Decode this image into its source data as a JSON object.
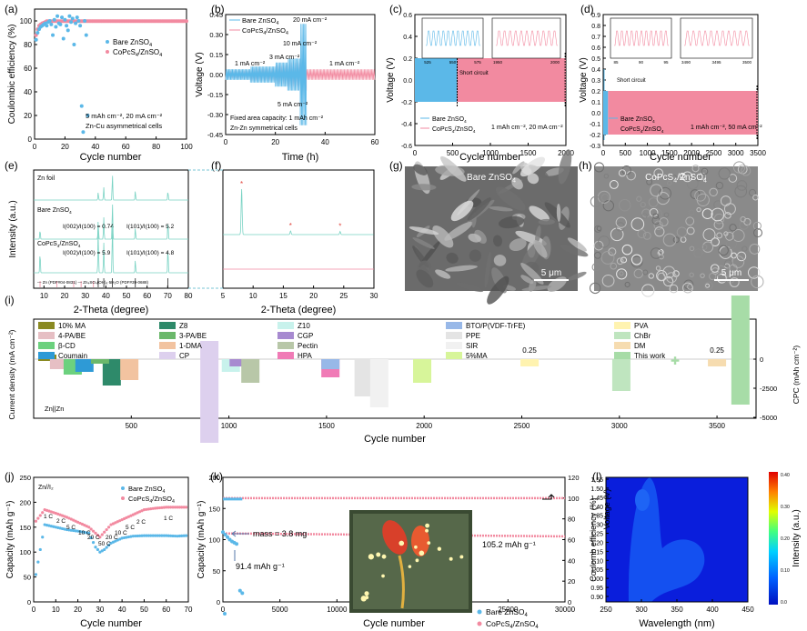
{
  "colors": {
    "bare": "#5bb8e8",
    "copcs": "#f28aa0",
    "axis": "#000000",
    "grey": "#888888"
  },
  "chart_data": [
    {
      "id": "a",
      "panel_label": "(a)",
      "type": "scatter",
      "xlabel": "Cycle number",
      "ylabel": "Coulombic efficiency (%)",
      "xlim": [
        0,
        100
      ],
      "ylim": [
        0,
        110
      ],
      "xticks": [
        "0",
        "20",
        "40",
        "60",
        "80",
        "100"
      ],
      "yticks": [
        "0",
        "20",
        "40",
        "60",
        "80",
        "100"
      ],
      "series": [
        {
          "name": "Bare ZnSO",
          "sub": "4",
          "x": [
            1,
            2,
            3,
            4,
            5,
            6,
            7,
            8,
            9,
            10,
            11,
            12,
            13,
            14,
            15,
            16,
            17,
            18,
            19,
            20,
            21,
            22,
            23,
            24,
            25,
            26,
            27,
            28,
            29,
            30,
            31,
            32,
            33,
            34,
            35
          ],
          "y": [
            84,
            90,
            93,
            95,
            96,
            97,
            98,
            96,
            99,
            100,
            97,
            88,
            101,
            95,
            104,
            98,
            97,
            103,
            85,
            101,
            96,
            92,
            104,
            99,
            102,
            80,
            98,
            103,
            100,
            96,
            28,
            6,
            100,
            88,
            20
          ]
        },
        {
          "name": "CoPcS",
          "sub": "4",
          "name_tail": "/ZnSO",
          "sub2": "4",
          "x_start": 1,
          "x_end": 100,
          "y_start": [
            88,
            93,
            96,
            97,
            98,
            98.5,
            99
          ],
          "y_plateau": 99.8
        }
      ],
      "annotations": [
        "5 mAh cm⁻², 20 mA cm⁻²",
        "Zn-Cu asymmetrical cells"
      ]
    },
    {
      "id": "b",
      "panel_label": "(b)",
      "type": "line",
      "xlabel": "Time (h)",
      "ylabel": "Voltage (V)",
      "xlim": [
        0,
        60
      ],
      "ylim": [
        -0.45,
        0.45
      ],
      "xticks": [
        "0",
        "20",
        "40",
        "60"
      ],
      "yticks": [
        "-0.45",
        "-0.30",
        "-0.15",
        "0.00",
        "0.15",
        "0.30",
        "0.45"
      ],
      "series": [
        {
          "name": "Bare ZnSO",
          "sub": "4"
        },
        {
          "name": "CoPcS",
          "sub": "4",
          "name_tail": "/ZnSO",
          "sub2": "4"
        }
      ],
      "segments": [
        {
          "t0": 0,
          "t1": 10,
          "amp_bare": 0.04,
          "amp_copcs": 0.03
        },
        {
          "t0": 10,
          "t1": 20,
          "amp_bare": 0.06,
          "amp_copcs": 0.045
        },
        {
          "t0": 20,
          "t1": 25,
          "amp_bare": 0.09,
          "amp_copcs": 0.07
        },
        {
          "t0": 25,
          "t1": 30,
          "amp_bare": 0.12,
          "amp_copcs": 0.09
        },
        {
          "t0": 30,
          "t1": 32.5,
          "amp_bare": 0.38,
          "amp_copcs": 0.12
        },
        {
          "t0": 32.5,
          "t1": 60,
          "amp_bare": 0,
          "amp_copcs": 0.04
        }
      ],
      "labels": [
        "1 mA cm⁻²",
        "3 mA cm⁻²",
        "10 mA cm⁻²",
        "20 mA cm⁻²",
        "5 mA cm⁻²",
        "1 mA cm⁻²"
      ],
      "annotations": [
        "Fixed area capacity: 1 mAh cm⁻²",
        "Zn-Zn symmetrical cells"
      ]
    },
    {
      "id": "c",
      "panel_label": "(c)",
      "type": "area",
      "xlabel": "Cycle number",
      "ylabel": "Voltage (V)",
      "xlim": [
        0,
        2000
      ],
      "ylim": [
        -0.6,
        0.6
      ],
      "xticks": [
        "0",
        "500",
        "1000",
        "1500",
        "2000"
      ],
      "yticks": [
        "-0.6",
        "-0.4",
        "-0.2",
        "0.0",
        "0.2",
        "0.4",
        "0.6"
      ],
      "bare_range": [
        0,
        560
      ],
      "bare_amp": 0.2,
      "copcs_range": [
        560,
        2000
      ],
      "copcs_amp": 0.2,
      "inset1_ticks": [
        "525",
        "550",
        "575"
      ],
      "inset2_ticks": [
        "1950",
        "2000"
      ],
      "inset_yticks": [
        "0.2",
        "0.0",
        "-0.2"
      ],
      "series": [
        {
          "name": "Bare ZnSO",
          "sub": "4"
        },
        {
          "name": "CoPcS",
          "sub": "4",
          "name_tail": "/ZnSO",
          "sub2": "4"
        }
      ],
      "annotations": [
        "Short circuit",
        "1 mAh cm⁻², 20 mA cm⁻²"
      ]
    },
    {
      "id": "d",
      "panel_label": "(d)",
      "type": "area",
      "xlabel": "Cycle number",
      "ylabel": "Voltage (V)",
      "xlim": [
        0,
        3500
      ],
      "ylim": [
        -0.3,
        0.9
      ],
      "xticks": [
        "0",
        "500",
        "1000",
        "1500",
        "2000",
        "2500",
        "3000",
        "3500"
      ],
      "yticks": [
        "-0.3",
        "-0.2",
        "-0.1",
        "0.0",
        "0.1",
        "0.2",
        "0.3",
        "0.4",
        "0.5",
        "0.6",
        "0.7",
        "0.8",
        "0.9"
      ],
      "bare_range": [
        0,
        110
      ],
      "copcs_range": [
        110,
        3500
      ],
      "copcs_amp": 0.2,
      "inset1_ticks": [
        "85",
        "90",
        "95"
      ],
      "inset2_ticks": [
        "3490",
        "3495",
        "3500"
      ],
      "series": [
        {
          "name": "Bare ZnSO",
          "sub": "4"
        },
        {
          "name": "CoPcS",
          "sub": "4",
          "name_tail": "/ZnSO",
          "sub2": "4"
        }
      ],
      "annotations": [
        "Short circuit",
        "1 mAh cm⁻², 50 mA cm⁻²"
      ]
    },
    {
      "id": "e",
      "panel_label": "(e)",
      "type": "line",
      "xlabel": "2-Theta (degree)",
      "ylabel": "Intensity (a.u.)",
      "xlim": [
        5,
        80
      ],
      "xticks": [
        "10",
        "20",
        "30",
        "40",
        "50",
        "60",
        "70",
        "80"
      ],
      "traces": [
        {
          "name": "Zn foil",
          "peaks": [
            [
              36.3,
              0.3
            ],
            [
              39.0,
              0.5
            ],
            [
              43.2,
              1.0
            ],
            [
              54.3,
              0.35
            ],
            [
              70.1,
              0.35
            ]
          ]
        },
        {
          "name": "Bare ZnSO",
          "sub": "4",
          "peaks": [
            [
              8.1,
              0.25
            ],
            [
              36.3,
              0.5
            ],
            [
              39.0,
              0.6
            ],
            [
              43.2,
              1.0
            ],
            [
              54.3,
              0.3
            ],
            [
              70.1,
              0.5
            ]
          ],
          "ratios": [
            "I(002)/I(100) = 0.74",
            "I(101)/I(100) = 5.2"
          ]
        },
        {
          "name": "CoPcS",
          "sub": "4",
          "name_tail": "/ZnSO",
          "sub2": "4",
          "peaks": [
            [
              8.1,
              0.4
            ],
            [
              36.3,
              0.9
            ],
            [
              39.0,
              0.6
            ],
            [
              43.2,
              1.0
            ],
            [
              54.3,
              0.25
            ],
            [
              70.1,
              0.5
            ]
          ],
          "ratios": [
            "I(002)/I(100) = 5.9",
            "I(101)/I(100) = 4.8"
          ]
        }
      ],
      "legend": [
        "Zn (PDF#04-0831)",
        "Zn₄SO₄(OH)₆·5H₂O (PDF#39-0688)"
      ]
    },
    {
      "id": "f",
      "panel_label": "(f)",
      "type": "line",
      "xlabel": "2-Theta (degree)",
      "xlim": [
        5,
        30
      ],
      "xticks": [
        "5",
        "10",
        "15",
        "20",
        "25",
        "30"
      ],
      "peaks": [
        [
          8.1,
          1.0
        ],
        [
          16.2,
          0.08
        ],
        [
          24.4,
          0.07
        ]
      ]
    },
    {
      "id": "i",
      "panel_label": "(i)",
      "type": "bar",
      "xlabel": "Cycle number",
      "ylabel": "Current density (mA cm⁻²)",
      "y2label": "CPC (mAh cm⁻²)",
      "xticks": [
        "500",
        "1000",
        "1500",
        "2000",
        "2500",
        "3000",
        "3500"
      ],
      "y2ticks": [
        "0",
        "-2500",
        "-5000"
      ],
      "legend": [
        "10% MA",
        "4-PA/BE",
        "β-CD",
        "Coumain",
        "Z8",
        "3-PA/BE",
        "1-DMA",
        "CP",
        "Z10",
        "CGP",
        "Pectin",
        "HPA",
        "BTO/P(VDF-TrFE)",
        "PPE",
        "SIR",
        "5%MA",
        "PVA",
        "ChBr",
        "DM",
        "This work"
      ],
      "annotations": [
        "0.25",
        "0.25",
        "Zn||Zn"
      ]
    },
    {
      "id": "j",
      "panel_label": "(j)",
      "type": "scatter",
      "xlabel": "Cycle number",
      "ylabel": "Capacity (mAh g⁻¹)",
      "xlim": [
        0,
        70
      ],
      "ylim": [
        0,
        250
      ],
      "xticks": [
        "0",
        "10",
        "20",
        "30",
        "40",
        "50",
        "60",
        "70"
      ],
      "yticks": [
        "0",
        "50",
        "100",
        "150",
        "200",
        "250"
      ],
      "series": [
        {
          "name": "Bare ZnSO",
          "sub": "4",
          "x": [
            1,
            5,
            10,
            15,
            20,
            25,
            28,
            30,
            32,
            35,
            40,
            45,
            50,
            55,
            60,
            65,
            69
          ],
          "y": [
            55,
            155,
            150,
            145,
            142,
            138,
            110,
            100,
            105,
            118,
            128,
            132,
            133,
            133,
            133,
            132,
            133
          ]
        },
        {
          "name": "CoPcS",
          "sub": "4",
          "name_tail": "/ZnSO",
          "sub2": "4",
          "x": [
            1,
            5,
            10,
            15,
            20,
            25,
            28,
            30,
            32,
            35,
            40,
            45,
            50,
            55,
            60,
            65,
            69
          ],
          "y": [
            162,
            185,
            178,
            170,
            160,
            150,
            138,
            130,
            140,
            155,
            165,
            175,
            185,
            188,
            190,
            190,
            190
          ]
        }
      ],
      "rates": [
        "1 C",
        "2 C",
        "5 C",
        "10 C",
        "20 C",
        "50 C",
        "20 C",
        "10 C",
        "5 C",
        "2 C",
        "1 C"
      ],
      "annotations": [
        "Zn//I₂"
      ]
    },
    {
      "id": "k",
      "panel_label": "(k)",
      "type": "scatter",
      "xlabel": "Cycle number",
      "ylabel": "Capacity (mAh g⁻¹)",
      "y2label": "Coulomb efficiency (%)",
      "xlim": [
        0,
        30000
      ],
      "ylim": [
        0,
        200
      ],
      "y2lim": [
        0,
        120
      ],
      "xticks": [
        "0",
        "5000",
        "10000",
        "15000",
        "20000",
        "25000",
        "30000"
      ],
      "yticks": [
        "0",
        "50",
        "100",
        "150",
        "200"
      ],
      "y2ticks": [
        "0",
        "20",
        "40",
        "60",
        "80",
        "100",
        "120"
      ],
      "series": [
        {
          "name": "Bare ZnSO",
          "sub": "4",
          "capacity_x": [
            0,
            200,
            400,
            600,
            800,
            1000,
            1200,
            1500,
            1700
          ],
          "capacity_y": [
            112,
            108,
            104,
            100,
            97,
            95,
            93,
            18,
            14
          ],
          "ce": 100
        },
        {
          "name": "CoPcS",
          "sub": "4",
          "name_tail": "/ZnSO",
          "sub2": "4",
          "capacity_start": 110,
          "capacity_end": 105.2,
          "ce": 100
        }
      ],
      "annotations": [
        "mass = 3.8 mg",
        "91.4 mAh g⁻¹",
        "105.2 mAh g⁻¹"
      ]
    },
    {
      "id": "l",
      "panel_label": "(l)",
      "type": "heatmap",
      "xlabel": "Wavelength (nm)",
      "ylabel": "Voltage (V)",
      "colorbar_label": "Intensity (a.u.)",
      "xlim": [
        250,
        450
      ],
      "ylim": [
        0.88,
        1.55
      ],
      "xticks": [
        "250",
        "300",
        "350",
        "400",
        "450"
      ],
      "yticks": [
        "0.90",
        "0.95",
        "1.00",
        "1.05",
        "1.10",
        "1.15",
        "1.20",
        "1.25",
        "1.30",
        "1.35",
        "1.40",
        "1.45",
        "1.50",
        "1.55"
      ],
      "cbar_ticks": [
        "0.40",
        "0.30",
        "0.20",
        "0.10",
        "0.0"
      ]
    }
  ],
  "images": [
    {
      "id": "g",
      "panel_label": "(g)",
      "caption": "Bare ZnSO",
      "sub": "4",
      "scalebar": "5 μm"
    },
    {
      "id": "h",
      "panel_label": "(h)",
      "caption": "CoPcS",
      "sub": "4",
      "caption_tail": "/ZnSO",
      "sub2": "4",
      "scalebar": "5 μm"
    }
  ]
}
